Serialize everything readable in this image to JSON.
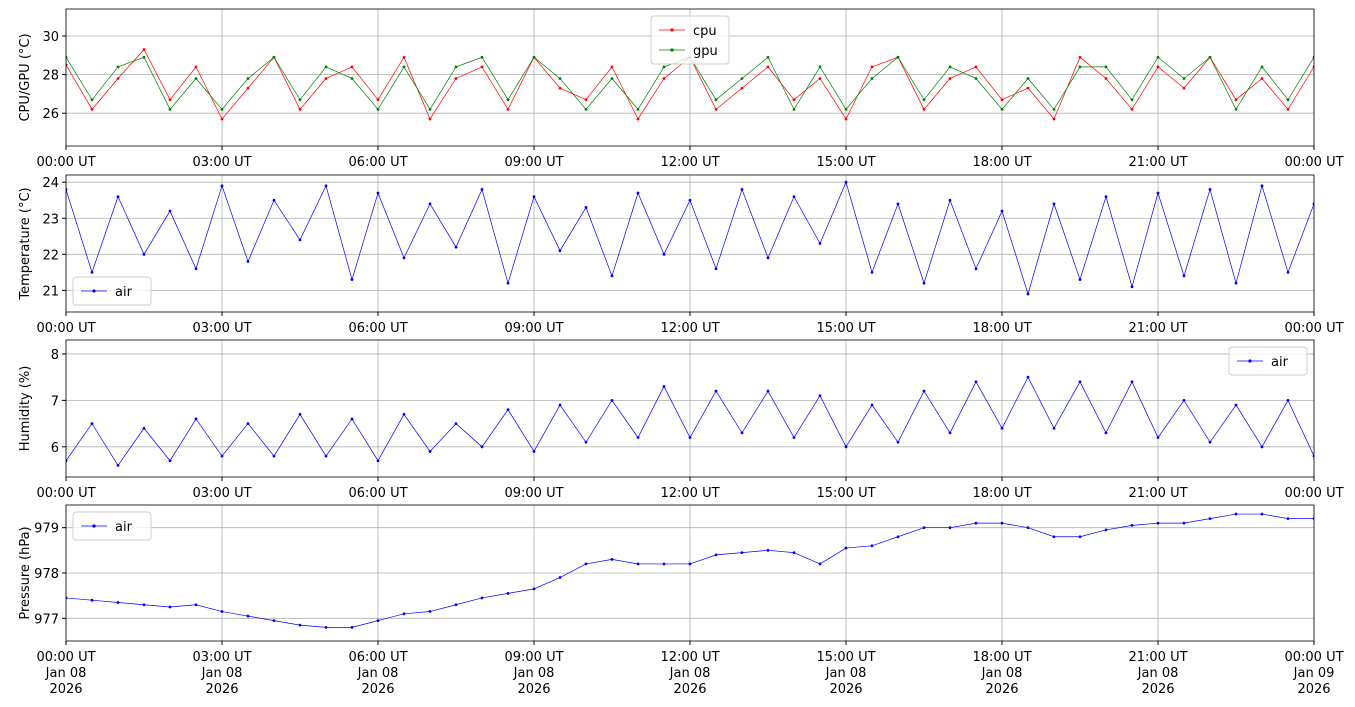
{
  "chart_data": [
    {
      "type": "line",
      "ylabel": "CPU/GPU (°C)",
      "legend": "upper center",
      "grid": true,
      "x": [
        0,
        0.5,
        1,
        1.5,
        2,
        2.5,
        3,
        3.5,
        4,
        4.5,
        5,
        5.5,
        6,
        6.5,
        7,
        7.5,
        8,
        8.5,
        9,
        9.5,
        10,
        10.5,
        11,
        11.5,
        12,
        12.5,
        13,
        13.5,
        14,
        14.5,
        15,
        15.5,
        16,
        16.5,
        17,
        17.5,
        18,
        18.5,
        19,
        19.5,
        20,
        20.5,
        21,
        21.5,
        22,
        22.5,
        23,
        23.5,
        24
      ],
      "series": [
        {
          "name": "cpu",
          "color": "#ff0000",
          "values": [
            28.5,
            26.2,
            27.8,
            29.3,
            26.7,
            28.4,
            25.7,
            27.3,
            28.9,
            26.2,
            27.8,
            28.4,
            26.7,
            28.9,
            25.7,
            27.8,
            28.4,
            26.2,
            28.9,
            27.3,
            26.7,
            28.4,
            25.7,
            27.8,
            28.9,
            26.2,
            27.3,
            28.4,
            26.7,
            27.8,
            25.7,
            28.4,
            28.9,
            26.2,
            27.8,
            28.4,
            26.7,
            27.3,
            25.7,
            28.9,
            27.8,
            26.2,
            28.4,
            27.3,
            28.9,
            26.7,
            27.8,
            26.2,
            28.4
          ]
        },
        {
          "name": "gpu",
          "color": "#008000",
          "values": [
            28.9,
            26.7,
            28.4,
            28.9,
            26.2,
            27.8,
            26.2,
            27.8,
            28.9,
            26.7,
            28.4,
            27.8,
            26.2,
            28.4,
            26.2,
            28.4,
            28.9,
            26.7,
            28.9,
            27.8,
            26.2,
            27.8,
            26.2,
            28.4,
            28.9,
            26.7,
            27.8,
            28.9,
            26.2,
            28.4,
            26.2,
            27.8,
            28.9,
            26.7,
            28.4,
            27.8,
            26.2,
            27.8,
            26.2,
            28.4,
            28.4,
            26.7,
            28.9,
            27.8,
            28.9,
            26.2,
            28.4,
            26.7,
            28.9
          ]
        }
      ],
      "xlim": [
        0,
        24
      ],
      "xticks": [
        {
          "value": 0,
          "label": "00:00 UT"
        },
        {
          "value": 3,
          "label": "03:00 UT"
        },
        {
          "value": 6,
          "label": "06:00 UT"
        },
        {
          "value": 9,
          "label": "09:00 UT"
        },
        {
          "value": 12,
          "label": "12:00 UT"
        },
        {
          "value": 15,
          "label": "15:00 UT"
        },
        {
          "value": 18,
          "label": "18:00 UT"
        },
        {
          "value": 21,
          "label": "21:00 UT"
        },
        {
          "value": 24,
          "label": "00:00 UT"
        }
      ],
      "ylim": [
        24.3,
        31.4
      ],
      "yticks": [
        26,
        28,
        30
      ]
    },
    {
      "type": "line",
      "ylabel": "Temperature (°C)",
      "legend": "lower left",
      "grid": true,
      "x": [
        0,
        0.5,
        1,
        1.5,
        2,
        2.5,
        3,
        3.5,
        4,
        4.5,
        5,
        5.5,
        6,
        6.5,
        7,
        7.5,
        8,
        8.5,
        9,
        9.5,
        10,
        10.5,
        11,
        11.5,
        12,
        12.5,
        13,
        13.5,
        14,
        14.5,
        15,
        15.5,
        16,
        16.5,
        17,
        17.5,
        18,
        18.5,
        19,
        19.5,
        20,
        20.5,
        21,
        21.5,
        22,
        22.5,
        23,
        23.5,
        24
      ],
      "series": [
        {
          "name": "air",
          "color": "#0000ff",
          "values": [
            23.8,
            21.5,
            23.6,
            22.0,
            23.2,
            21.6,
            23.9,
            21.8,
            23.5,
            22.4,
            23.9,
            21.3,
            23.7,
            21.9,
            23.4,
            22.2,
            23.8,
            21.2,
            23.6,
            22.1,
            23.3,
            21.4,
            23.7,
            22.0,
            23.5,
            21.6,
            23.8,
            21.9,
            23.6,
            22.3,
            24.0,
            21.5,
            23.4,
            21.2,
            23.5,
            21.6,
            23.2,
            20.9,
            23.4,
            21.3,
            23.6,
            21.1,
            23.7,
            21.4,
            23.8,
            21.2,
            23.9,
            21.5,
            23.4
          ]
        }
      ],
      "xlim": [
        0,
        24
      ],
      "xticks": [
        {
          "value": 0,
          "label": "00:00 UT"
        },
        {
          "value": 3,
          "label": "03:00 UT"
        },
        {
          "value": 6,
          "label": "06:00 UT"
        },
        {
          "value": 9,
          "label": "09:00 UT"
        },
        {
          "value": 12,
          "label": "12:00 UT"
        },
        {
          "value": 15,
          "label": "15:00 UT"
        },
        {
          "value": 18,
          "label": "18:00 UT"
        },
        {
          "value": 21,
          "label": "21:00 UT"
        },
        {
          "value": 24,
          "label": "00:00 UT"
        }
      ],
      "ylim": [
        20.4,
        24.2
      ],
      "yticks": [
        21,
        22,
        23,
        24
      ]
    },
    {
      "type": "line",
      "ylabel": "Humidity (%)",
      "legend": "upper right",
      "grid": true,
      "x": [
        0,
        0.5,
        1,
        1.5,
        2,
        2.5,
        3,
        3.5,
        4,
        4.5,
        5,
        5.5,
        6,
        6.5,
        7,
        7.5,
        8,
        8.5,
        9,
        9.5,
        10,
        10.5,
        11,
        11.5,
        12,
        12.5,
        13,
        13.5,
        14,
        14.5,
        15,
        15.5,
        16,
        16.5,
        17,
        17.5,
        18,
        18.5,
        19,
        19.5,
        20,
        20.5,
        21,
        21.5,
        22,
        22.5,
        23,
        23.5,
        24
      ],
      "series": [
        {
          "name": "air",
          "color": "#0000ff",
          "values": [
            5.7,
            6.5,
            5.6,
            6.4,
            5.7,
            6.6,
            5.8,
            6.5,
            5.8,
            6.7,
            5.8,
            6.6,
            5.7,
            6.7,
            5.9,
            6.5,
            6.0,
            6.8,
            5.9,
            6.9,
            6.1,
            7.0,
            6.2,
            7.3,
            6.2,
            7.2,
            6.3,
            7.2,
            6.2,
            7.1,
            6.0,
            6.9,
            6.1,
            7.2,
            6.3,
            7.4,
            6.4,
            7.5,
            6.4,
            7.4,
            6.3,
            7.4,
            6.2,
            7.0,
            6.1,
            6.9,
            6.0,
            7.0,
            5.8
          ]
        }
      ],
      "xlim": [
        0,
        24
      ],
      "xticks": [
        {
          "value": 0,
          "label": "00:00 UT"
        },
        {
          "value": 3,
          "label": "03:00 UT"
        },
        {
          "value": 6,
          "label": "06:00 UT"
        },
        {
          "value": 9,
          "label": "09:00 UT"
        },
        {
          "value": 12,
          "label": "12:00 UT"
        },
        {
          "value": 15,
          "label": "15:00 UT"
        },
        {
          "value": 18,
          "label": "18:00 UT"
        },
        {
          "value": 21,
          "label": "21:00 UT"
        },
        {
          "value": 24,
          "label": "00:00 UT"
        }
      ],
      "ylim": [
        5.35,
        8.3
      ],
      "yticks": [
        6,
        7,
        8
      ]
    },
    {
      "type": "line",
      "ylabel": "Pressure (hPa)",
      "legend": "upper left",
      "grid": true,
      "x": [
        0,
        0.5,
        1,
        1.5,
        2,
        2.5,
        3,
        3.5,
        4,
        4.5,
        5,
        5.5,
        6,
        6.5,
        7,
        7.5,
        8,
        8.5,
        9,
        9.5,
        10,
        10.5,
        11,
        11.5,
        12,
        12.5,
        13,
        13.5,
        14,
        14.5,
        15,
        15.5,
        16,
        16.5,
        17,
        17.5,
        18,
        18.5,
        19,
        19.5,
        20,
        20.5,
        21,
        21.5,
        22,
        22.5,
        23,
        23.5,
        24
      ],
      "series": [
        {
          "name": "air",
          "color": "#0000ff",
          "values": [
            977.45,
            977.4,
            977.35,
            977.3,
            977.25,
            977.3,
            977.15,
            977.05,
            976.95,
            976.85,
            976.8,
            976.8,
            976.95,
            977.1,
            977.15,
            977.3,
            977.45,
            977.55,
            977.65,
            977.9,
            978.2,
            978.3,
            978.2,
            978.2,
            978.2,
            978.4,
            978.45,
            978.5,
            978.45,
            978.2,
            978.55,
            978.6,
            978.8,
            979.0,
            979.0,
            979.1,
            979.1,
            979.0,
            978.8,
            978.8,
            978.95,
            979.05,
            979.1,
            979.1,
            979.2,
            979.3,
            979.3,
            979.2,
            979.2
          ]
        }
      ],
      "xlim": [
        0,
        24
      ],
      "xticks": [
        {
          "value": 0,
          "label": [
            "00:00 UT",
            "Jan 08",
            "2026"
          ]
        },
        {
          "value": 3,
          "label": [
            "03:00 UT",
            "Jan 08",
            "2026"
          ]
        },
        {
          "value": 6,
          "label": [
            "06:00 UT",
            "Jan 08",
            "2026"
          ]
        },
        {
          "value": 9,
          "label": [
            "09:00 UT",
            "Jan 08",
            "2026"
          ]
        },
        {
          "value": 12,
          "label": [
            "12:00 UT",
            "Jan 08",
            "2026"
          ]
        },
        {
          "value": 15,
          "label": [
            "15:00 UT",
            "Jan 08",
            "2026"
          ]
        },
        {
          "value": 18,
          "label": [
            "18:00 UT",
            "Jan 08",
            "2026"
          ]
        },
        {
          "value": 21,
          "label": [
            "21:00 UT",
            "Jan 08",
            "2026"
          ]
        },
        {
          "value": 24,
          "label": [
            "00:00 UT",
            "Jan 09",
            "2026"
          ]
        }
      ],
      "ylim": [
        976.5,
        979.5
      ],
      "yticks": [
        977,
        978,
        979
      ]
    }
  ]
}
